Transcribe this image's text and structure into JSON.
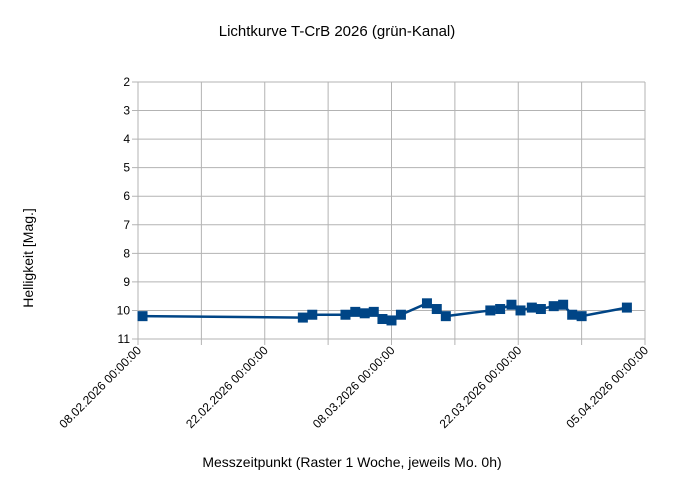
{
  "chart_data": {
    "type": "line",
    "title": "Lichtkurve T-CrB 2026 (grün-Kanal)",
    "xlabel": "Messzeitpunkt (Raster 1 Woche, jeweils Mo. 0h)",
    "ylabel": "Helligkeit [Mag.]",
    "x_ticks": [
      "08.02.2026 00:00:00",
      "22.02.2026 00:00:00",
      "08.03.2026 00:00:00",
      "22.03.2026 00:00:00",
      "05.04.2026 00:00:00"
    ],
    "y_ticks": [
      2,
      3,
      4,
      5,
      6,
      7,
      8,
      9,
      10,
      11
    ],
    "xlim": [
      "2026-02-08",
      "2026-04-05"
    ],
    "ylim": [
      11,
      2
    ],
    "y_inverted": true,
    "grid": true,
    "colors": {
      "series": "#004586",
      "grid": "#b3b3b3",
      "axis": "#b3b3b3"
    },
    "series": [
      {
        "marker": "square",
        "x": [
          "2026-02-08T12:00",
          "2026-02-26T05:00",
          "2026-02-27T06:00",
          "2026-03-02T22:00",
          "2026-03-04T00:00",
          "2026-03-05T01:00",
          "2026-03-06T01:00",
          "2026-03-07T00:00",
          "2026-03-08T00:00",
          "2026-03-09T01:00",
          "2026-03-11T22:00",
          "2026-03-13T00:00",
          "2026-03-14T00:00",
          "2026-03-18T22:00",
          "2026-03-20T00:00",
          "2026-03-21T06:00",
          "2026-03-22T06:00",
          "2026-03-23T12:00",
          "2026-03-24T12:00",
          "2026-03-25T22:00",
          "2026-03-26T23:00",
          "2026-03-27T23:00",
          "2026-03-29T00:00",
          "2026-04-03T00:00"
        ],
        "values": [
          10.2,
          10.25,
          10.15,
          10.15,
          10.05,
          10.1,
          10.05,
          10.3,
          10.35,
          10.15,
          9.75,
          9.95,
          10.2,
          10.0,
          9.95,
          9.8,
          10.0,
          9.9,
          9.95,
          9.85,
          9.8,
          10.15,
          10.2,
          9.9
        ]
      }
    ]
  }
}
